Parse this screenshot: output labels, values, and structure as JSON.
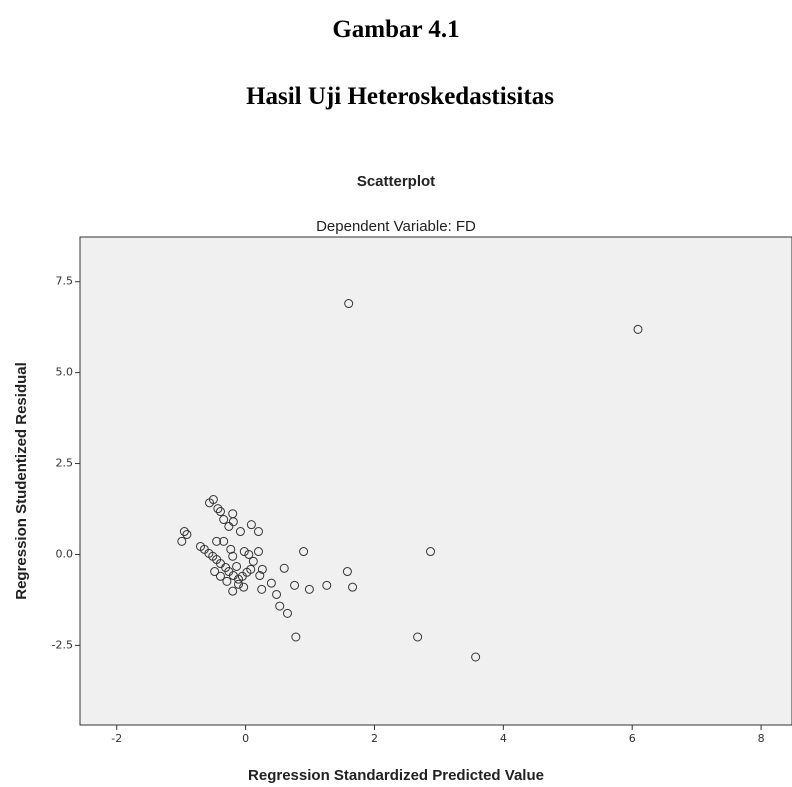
{
  "document": {
    "figure_number": "Gambar 4.1",
    "caption": "Hasil Uji Heteroskedastisitas"
  },
  "chart_data": {
    "type": "scatter",
    "title": "Scatterplot",
    "subtitle": "Dependent Variable: FD",
    "x_label": "Regression Standardized Predicted Value",
    "y_label": "Regression Studentized Residual",
    "color": "#333333",
    "xlim": [
      -2.57,
      8.48
    ],
    "xticks": [
      -2,
      0,
      2,
      4,
      6,
      8
    ],
    "ylim": [
      -4.69,
      8.73
    ],
    "yticks": [
      {
        "value": 7.5,
        "label": "7.5"
      },
      {
        "value": 5,
        "label": "5.0"
      },
      {
        "value": 2.5,
        "label": "2.5"
      },
      {
        "value": 0,
        "label": "0.0"
      },
      {
        "value": -2.5,
        "label": "-2.5"
      }
    ],
    "x": [
      1.6,
      6.09,
      2.87,
      0.9,
      3.57,
      2.67,
      0.78,
      1.26,
      1.66,
      1.58,
      0.6,
      0.65,
      0.53,
      0.48,
      0.4,
      0.25,
      0.99,
      0.76,
      -0.95,
      -0.91,
      -0.99,
      -0.5,
      -0.56,
      -0.39,
      -0.43,
      -0.34,
      -0.26,
      -0.19,
      -0.2,
      -0.08,
      0.09,
      0.2,
      -0.7,
      -0.64,
      -0.57,
      -0.51,
      -0.45,
      -0.39,
      -0.31,
      -0.26,
      -0.19,
      -0.11,
      -0.05,
      0.02,
      0.08,
      0.12,
      0.05,
      -0.02,
      -0.2,
      -0.03,
      -0.23,
      -0.45,
      -0.34,
      -0.48,
      -0.39,
      -0.29,
      -0.11,
      0.22,
      0.26,
      0.2,
      -0.2,
      -0.14
    ],
    "values": [
      6.9,
      6.19,
      0.08,
      0.08,
      -2.82,
      -2.27,
      -2.27,
      -0.85,
      -0.9,
      -0.47,
      -0.38,
      -1.62,
      -1.42,
      -1.1,
      -0.79,
      -0.96,
      -0.96,
      -0.85,
      0.63,
      0.55,
      0.36,
      1.51,
      1.42,
      1.18,
      1.26,
      0.96,
      0.77,
      0.9,
      1.12,
      0.63,
      0.82,
      0.63,
      0.22,
      0.14,
      0.03,
      -0.05,
      -0.14,
      -0.25,
      -0.36,
      -0.47,
      -0.58,
      -0.68,
      -0.6,
      -0.49,
      -0.41,
      -0.19,
      0.0,
      0.08,
      -1.01,
      -0.9,
      0.14,
      0.36,
      0.36,
      -0.47,
      -0.6,
      -0.74,
      -0.82,
      -0.58,
      -0.41,
      0.08,
      -0.05,
      -0.33
    ]
  }
}
